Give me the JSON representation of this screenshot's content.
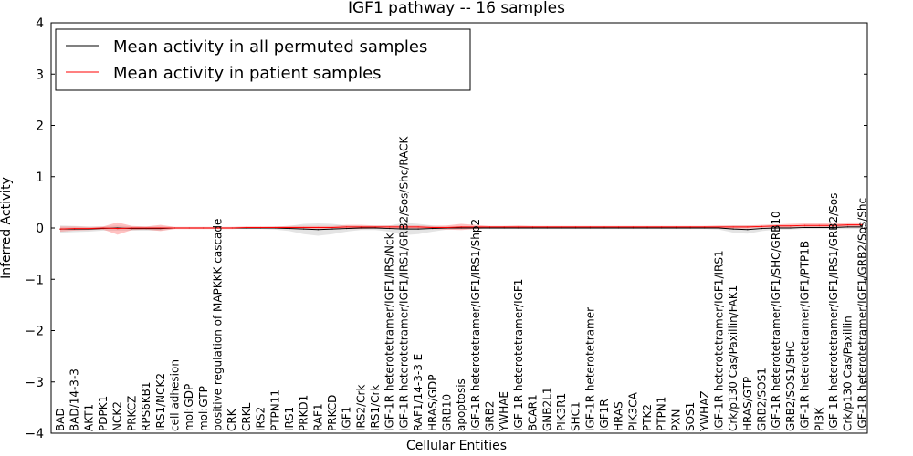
{
  "chart_data": {
    "type": "line",
    "title": "IGF1 pathway -- 16 samples",
    "xlabel": "Cellular Entities",
    "ylabel": "Inferred Activity",
    "ylim": [
      -4,
      4
    ],
    "yticks": [
      -4,
      -3,
      -2,
      -1,
      0,
      1,
      2,
      3,
      4
    ],
    "ytick_labels": [
      "−4",
      "−3",
      "−2",
      "−1",
      "0",
      "1",
      "2",
      "3",
      "4"
    ],
    "legend_position": "top-left",
    "colors": {
      "permuted": "#000000",
      "patient": "#ff0000",
      "permuted_band": "#b3b3b3",
      "patient_band": "#ff6666"
    },
    "categories": [
      "BAD",
      "BAD/14-3-3",
      "AKT1",
      "PDPK1",
      "NCK2",
      "PRKCZ",
      "RPS6KB1",
      "IRS1/NCK2",
      "cell adhesion",
      "mol:GDP",
      "mol:GTP",
      "positive regulation of MAPKKK cascade",
      "CRK",
      "CRKL",
      "IRS2",
      "PTPN11",
      "IRS1",
      "PRKD1",
      "RAF1",
      "PRKCD",
      "IGF1",
      "IRS2/Crk",
      "IRS1/Crk",
      "IGF-1R heterotetramer/IGF1/IRS/Nck",
      "IGF-1R heterotetramer/IGF1/IRS1/GRB2/Sos/Shc/RACK",
      "RAF1/14-3-3 E",
      "HRAS/GDP",
      "GRB10",
      "apoptosis",
      "IGF-1R heterotetramer/IGF1/IRS1/Shp2",
      "GRB2",
      "YWHAE",
      "IGF-1R heterotetramer/IGF1",
      "BCAR1",
      "GNB2L1",
      "PIK3R1",
      "SHC1",
      "IGF-1R heterotetramer",
      "IGF1R",
      "HRAS",
      "PIK3CA",
      "PTK2",
      "PTPN1",
      "PXN",
      "SOS1",
      "YWHAZ",
      "IGF-1R heterotetramer/IGF1/IRS1",
      "Crk/p130 Cas/Paxillin/FAK1",
      "HRAS/GTP",
      "GRB2/SOS1",
      "IGF-1R heterotetramer/IGF1/SHC/GRB10",
      "GRB2/SOS1/SHC",
      "IGF-1R heterotetramer/IGF1/PTP1B",
      "PI3K",
      "IGF-1R heterotetramer/IGF1/IRS1/GRB2/Sos",
      "Crk/p130 Cas/Paxillin",
      "IGF-1R heterotetramer/IGF1/GRB2/Sos/Shc"
    ],
    "series": [
      {
        "name": "Mean activity in all permuted samples",
        "values": [
          -0.02,
          -0.02,
          -0.02,
          -0.01,
          0.0,
          -0.01,
          -0.01,
          -0.01,
          0.0,
          0.0,
          0.0,
          0.0,
          0.0,
          0.0,
          0.0,
          0.0,
          -0.01,
          -0.02,
          -0.03,
          -0.02,
          -0.01,
          0.0,
          0.0,
          -0.01,
          -0.02,
          -0.02,
          -0.01,
          0.0,
          0.0,
          0.0,
          0.0,
          0.0,
          0.0,
          0.0,
          0.0,
          0.0,
          0.0,
          0.0,
          0.0,
          0.0,
          0.0,
          0.0,
          0.0,
          0.0,
          0.0,
          0.0,
          0.0,
          -0.02,
          -0.03,
          -0.01,
          0.0,
          0.0,
          0.01,
          0.01,
          0.01,
          0.02,
          0.02
        ],
        "band": [
          0.07,
          0.06,
          0.05,
          0.04,
          0.05,
          0.04,
          0.04,
          0.04,
          0.02,
          0.02,
          0.02,
          0.02,
          0.02,
          0.02,
          0.02,
          0.03,
          0.05,
          0.1,
          0.12,
          0.1,
          0.06,
          0.04,
          0.04,
          0.06,
          0.12,
          0.1,
          0.06,
          0.03,
          0.02,
          0.02,
          0.02,
          0.02,
          0.02,
          0.02,
          0.02,
          0.02,
          0.02,
          0.02,
          0.02,
          0.02,
          0.02,
          0.02,
          0.02,
          0.02,
          0.02,
          0.02,
          0.03,
          0.07,
          0.08,
          0.05,
          0.03,
          0.03,
          0.03,
          0.03,
          0.03,
          0.04,
          0.04
        ]
      },
      {
        "name": "Mean activity in patient samples",
        "values": [
          -0.02,
          -0.01,
          -0.01,
          0.0,
          -0.01,
          0.0,
          0.0,
          0.0,
          0.0,
          0.0,
          0.0,
          0.0,
          0.0,
          0.01,
          0.01,
          0.01,
          0.01,
          0.01,
          0.01,
          0.01,
          0.02,
          0.02,
          0.02,
          0.02,
          0.02,
          0.02,
          0.01,
          0.01,
          0.02,
          0.02,
          0.02,
          0.02,
          0.02,
          0.02,
          0.02,
          0.02,
          0.02,
          0.02,
          0.02,
          0.02,
          0.02,
          0.02,
          0.02,
          0.02,
          0.02,
          0.02,
          0.02,
          0.02,
          0.02,
          0.03,
          0.04,
          0.04,
          0.05,
          0.05,
          0.05,
          0.06,
          0.06
        ],
        "band": [
          0.05,
          0.04,
          0.03,
          0.03,
          0.12,
          0.04,
          0.03,
          0.06,
          0.02,
          0.02,
          0.02,
          0.02,
          0.02,
          0.02,
          0.02,
          0.02,
          0.03,
          0.03,
          0.03,
          0.03,
          0.04,
          0.04,
          0.03,
          0.03,
          0.03,
          0.03,
          0.03,
          0.04,
          0.06,
          0.04,
          0.02,
          0.02,
          0.03,
          0.02,
          0.02,
          0.02,
          0.02,
          0.02,
          0.02,
          0.02,
          0.02,
          0.02,
          0.02,
          0.02,
          0.02,
          0.02,
          0.03,
          0.03,
          0.03,
          0.03,
          0.03,
          0.04,
          0.04,
          0.04,
          0.04,
          0.05,
          0.05
        ]
      }
    ]
  }
}
